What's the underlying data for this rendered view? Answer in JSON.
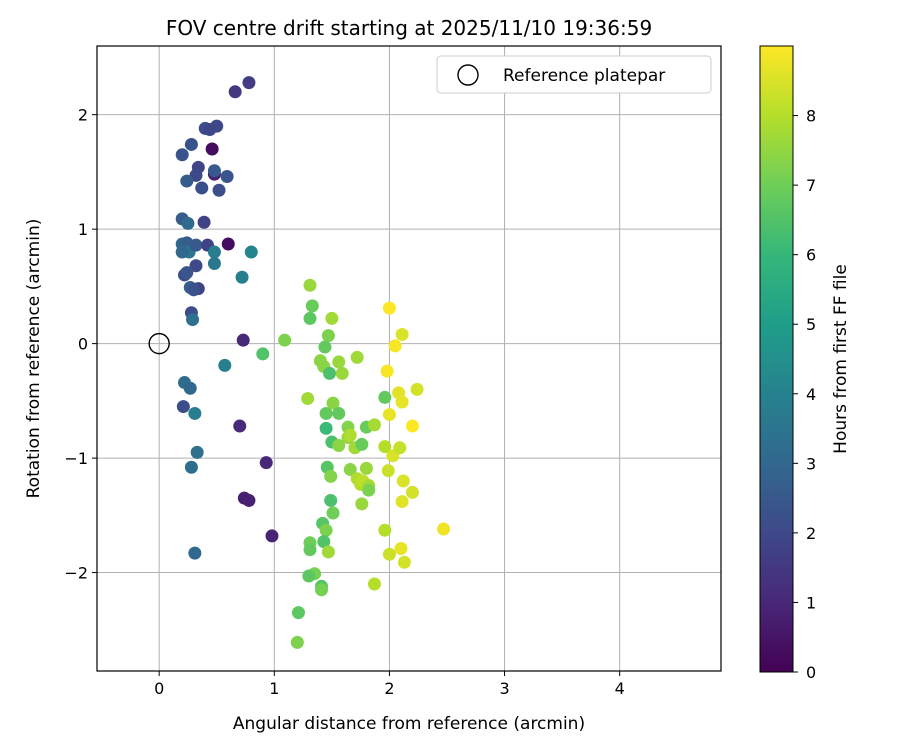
{
  "chart_data": {
    "type": "scatter",
    "title": "FOV centre drift starting at 2025/11/10 19:36:59",
    "xlabel": "Angular distance from reference (arcmin)",
    "ylabel": "Rotation from reference (arcmin)",
    "xlim": [
      -0.54,
      4.88
    ],
    "ylim": [
      -2.86,
      2.6
    ],
    "xticks": [
      "0",
      "1",
      "2",
      "3",
      "4"
    ],
    "yticks": [
      "2",
      "1",
      "0",
      "−1",
      "−2"
    ],
    "grid": true,
    "legend": {
      "position": "top-right",
      "label": "Reference platepar"
    },
    "reference_point": {
      "x": 0,
      "y": 0
    },
    "colorbar": {
      "label": "Hours from first FF file",
      "colormap": "viridis",
      "range": [
        0,
        9
      ],
      "ticks": [
        "0",
        "1",
        "2",
        "3",
        "4",
        "5",
        "6",
        "7",
        "8"
      ]
    },
    "points": [
      [
        0.46,
        1.7,
        0.3
      ],
      [
        0.6,
        0.87,
        0.3
      ],
      [
        0.48,
        1.48,
        0.8
      ],
      [
        0.66,
        2.2,
        1.5
      ],
      [
        0.78,
        2.28,
        1.6
      ],
      [
        0.4,
        1.88,
        2.1
      ],
      [
        0.5,
        1.9,
        2.0
      ],
      [
        0.44,
        1.87,
        1.9
      ],
      [
        0.2,
        1.65,
        2.4
      ],
      [
        0.28,
        1.74,
        2.3
      ],
      [
        0.34,
        1.54,
        1.9
      ],
      [
        0.32,
        1.47,
        2.0
      ],
      [
        0.24,
        1.42,
        2.6
      ],
      [
        0.37,
        1.36,
        2.2
      ],
      [
        0.48,
        1.51,
        2.5
      ],
      [
        0.52,
        1.34,
        2.2
      ],
      [
        0.59,
        1.46,
        2.4
      ],
      [
        0.39,
        1.06,
        1.8
      ],
      [
        0.2,
        1.09,
        2.6
      ],
      [
        0.25,
        1.05,
        3.1
      ],
      [
        0.2,
        0.87,
        3.0
      ],
      [
        0.24,
        0.88,
        2.6
      ],
      [
        0.26,
        0.8,
        3.5
      ],
      [
        0.2,
        0.8,
        3.0
      ],
      [
        0.32,
        0.86,
        2.5
      ],
      [
        0.42,
        0.86,
        1.8
      ],
      [
        0.48,
        0.8,
        3.8
      ],
      [
        0.48,
        0.7,
        3.6
      ],
      [
        0.32,
        0.68,
        2.0
      ],
      [
        0.22,
        0.6,
        2.1
      ],
      [
        0.24,
        0.62,
        2.4
      ],
      [
        0.27,
        0.49,
        2.7
      ],
      [
        0.34,
        0.48,
        1.8
      ],
      [
        0.3,
        0.47,
        2.3
      ],
      [
        0.28,
        0.27,
        2.1
      ],
      [
        0.29,
        0.21,
        3.3
      ],
      [
        0.72,
        0.58,
        3.9
      ],
      [
        0.8,
        0.8,
        4.1
      ],
      [
        0.73,
        0.03,
        1.0
      ],
      [
        0.57,
        -0.19,
        3.9
      ],
      [
        0.22,
        -0.34,
        3.2
      ],
      [
        0.27,
        -0.39,
        3.0
      ],
      [
        0.21,
        -0.55,
        2.1
      ],
      [
        0.31,
        -0.61,
        3.8
      ],
      [
        0.33,
        -0.95,
        3.3
      ],
      [
        0.28,
        -1.08,
        3.2
      ],
      [
        0.31,
        -1.83,
        3.0
      ],
      [
        0.7,
        -0.72,
        1.1
      ],
      [
        0.93,
        -1.04,
        1.0
      ],
      [
        0.74,
        -1.35,
        0.8
      ],
      [
        0.78,
        -1.37,
        0.8
      ],
      [
        0.98,
        -1.68,
        0.9
      ],
      [
        0.9,
        -0.09,
        6.5
      ],
      [
        1.09,
        0.03,
        7.2
      ],
      [
        1.31,
        0.51,
        7.6
      ],
      [
        1.33,
        0.33,
        6.9
      ],
      [
        1.31,
        0.22,
        6.7
      ],
      [
        1.47,
        0.07,
        7.2
      ],
      [
        1.5,
        0.22,
        7.7
      ],
      [
        1.4,
        -0.15,
        7.4
      ],
      [
        1.44,
        -0.03,
        6.8
      ],
      [
        1.43,
        -0.2,
        7.4
      ],
      [
        1.48,
        -0.26,
        6.4
      ],
      [
        1.56,
        -0.16,
        7.6
      ],
      [
        1.59,
        -0.26,
        7.6
      ],
      [
        1.72,
        -0.12,
        7.7
      ],
      [
        1.29,
        -0.48,
        7.7
      ],
      [
        1.45,
        -0.61,
        6.8
      ],
      [
        1.51,
        -0.52,
        7.4
      ],
      [
        1.56,
        -0.61,
        6.8
      ],
      [
        1.45,
        -0.74,
        6.1
      ],
      [
        1.5,
        -0.86,
        6.4
      ],
      [
        1.56,
        -0.89,
        7.4
      ],
      [
        1.64,
        -0.73,
        7.3
      ],
      [
        1.64,
        -0.82,
        7.6
      ],
      [
        1.66,
        -0.8,
        7.9
      ],
      [
        1.7,
        -0.91,
        7.7
      ],
      [
        1.76,
        -0.88,
        6.9
      ],
      [
        1.8,
        -0.73,
        6.9
      ],
      [
        1.87,
        -0.71,
        7.8
      ],
      [
        1.96,
        -0.47,
        6.8
      ],
      [
        1.46,
        -1.08,
        6.6
      ],
      [
        1.49,
        -1.16,
        7.3
      ],
      [
        1.66,
        -1.1,
        7.4
      ],
      [
        1.72,
        -1.18,
        7.9
      ],
      [
        1.75,
        -1.23,
        8.0
      ],
      [
        1.77,
        -1.2,
        8.1
      ],
      [
        1.8,
        -1.09,
        7.6
      ],
      [
        1.82,
        -1.24,
        7.8
      ],
      [
        1.82,
        -1.28,
        7.2
      ],
      [
        1.76,
        -1.4,
        7.6
      ],
      [
        1.49,
        -1.37,
        6.4
      ],
      [
        1.51,
        -1.48,
        7.0
      ],
      [
        1.42,
        -1.57,
        6.6
      ],
      [
        1.45,
        -1.63,
        7.2
      ],
      [
        1.43,
        -1.73,
        6.5
      ],
      [
        1.31,
        -1.74,
        7.0
      ],
      [
        1.31,
        -1.8,
        6.8
      ],
      [
        1.47,
        -1.82,
        7.7
      ],
      [
        1.35,
        -2.01,
        7.1
      ],
      [
        1.3,
        -2.03,
        6.7
      ],
      [
        1.41,
        -2.12,
        6.6
      ],
      [
        1.41,
        -2.15,
        7.1
      ],
      [
        1.21,
        -2.35,
        6.7
      ],
      [
        1.2,
        -2.61,
        7.2
      ],
      [
        1.87,
        -2.1,
        8.0
      ],
      [
        1.96,
        -1.63,
        8.0
      ],
      [
        2.0,
        -1.84,
        8.3
      ],
      [
        2.1,
        -1.79,
        8.7
      ],
      [
        2.13,
        -1.91,
        8.4
      ],
      [
        2.11,
        -1.38,
        8.6
      ],
      [
        2.12,
        -1.2,
        8.5
      ],
      [
        2.2,
        -1.3,
        8.4
      ],
      [
        1.99,
        -1.11,
        8.3
      ],
      [
        2.03,
        -0.98,
        8.5
      ],
      [
        1.96,
        -0.9,
        8.0
      ],
      [
        2.09,
        -0.91,
        8.2
      ],
      [
        2.2,
        -0.72,
        9.0
      ],
      [
        2.0,
        -0.62,
        8.7
      ],
      [
        1.98,
        -0.24,
        8.9
      ],
      [
        2.08,
        -0.43,
        8.6
      ],
      [
        2.11,
        -0.51,
        8.7
      ],
      [
        2.24,
        -0.4,
        8.4
      ],
      [
        2.05,
        -0.02,
        8.9
      ],
      [
        2.11,
        0.08,
        8.5
      ],
      [
        2.0,
        0.31,
        9.0
      ],
      [
        2.47,
        -1.62,
        8.8
      ]
    ]
  }
}
